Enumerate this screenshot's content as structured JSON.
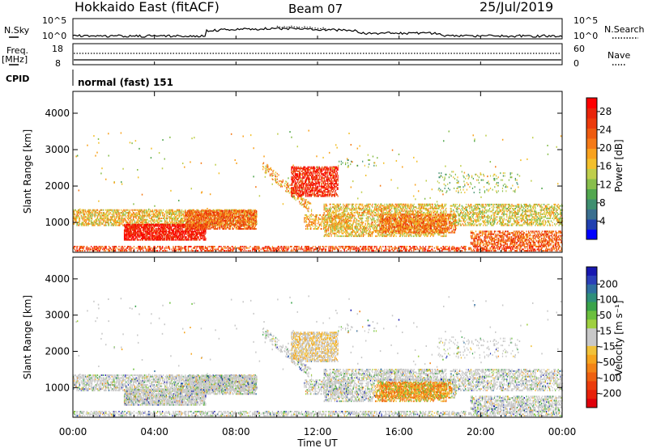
{
  "header": {
    "title": "Hokkaido East (fitACF)",
    "beam": "Beam 07",
    "date": "25/Jul/2019"
  },
  "status_panels": {
    "nsky_label": "N.Sky",
    "nsearch_label": "N.Search",
    "nsky_ticks": [
      "10^5",
      "10^0"
    ],
    "freq_label": "Freq.",
    "freq_unit": "[MHz]",
    "freq_ticks": [
      "18",
      "8"
    ],
    "nave_label": "Nave",
    "nave_ticks": [
      "60",
      "0"
    ],
    "cpid_label": "CPID",
    "cpid_value": "normal (fast) 151"
  },
  "chart_data": [
    {
      "type": "heatmap",
      "quantity": "Power",
      "xlabel": "Time UT",
      "ylabel": "Slant Range [km]",
      "xlim": [
        0,
        24
      ],
      "ylim": [
        180,
        4600
      ],
      "x_tick_labels": [
        "00:00",
        "04:00",
        "08:00",
        "12:00",
        "16:00",
        "20:00",
        "00:00"
      ],
      "y_ticks": [
        1000,
        2000,
        3000,
        4000
      ],
      "colorbar": {
        "label": "Power [dB]",
        "tick_values": [
          4,
          8,
          12,
          16,
          20,
          24,
          28
        ],
        "range": [
          0,
          31
        ],
        "colors": [
          "#0000ff",
          "#2040b0",
          "#3b6f8f",
          "#3f8f70",
          "#52a74f",
          "#88be4c",
          "#bfce4c",
          "#f3c02c",
          "#f9a21e",
          "#f57a17",
          "#ee5b10",
          "#ec3a0b",
          "#e9240a",
          "#ff0000"
        ]
      }
    },
    {
      "type": "heatmap",
      "quantity": "Velocity",
      "xlabel": "Time UT",
      "ylabel": "Slant Range [km]",
      "xlim": [
        0,
        24
      ],
      "ylim": [
        180,
        4600
      ],
      "x_tick_labels": [
        "00:00",
        "04:00",
        "08:00",
        "12:00",
        "16:00",
        "20:00",
        "00:00"
      ],
      "y_ticks": [
        1000,
        2000,
        3000,
        4000
      ],
      "colorbar": {
        "label": "Velocity [m s⁻¹]",
        "tick_labels": [
          "200",
          "100",
          "50",
          "15",
          "-15",
          "-50",
          "-100",
          "-200"
        ],
        "colors": [
          "#1717b0",
          "#2a3fb8",
          "#2f6fa0",
          "#2f8f7a",
          "#3aa34a",
          "#6cc03e",
          "#9fd040",
          "#c8c8c8",
          "#c8c8c8",
          "#f1c23a",
          "#f6a51f",
          "#f38316",
          "#ee6010",
          "#eb3c0c",
          "#e8200a",
          "#e0000a"
        ]
      }
    }
  ]
}
